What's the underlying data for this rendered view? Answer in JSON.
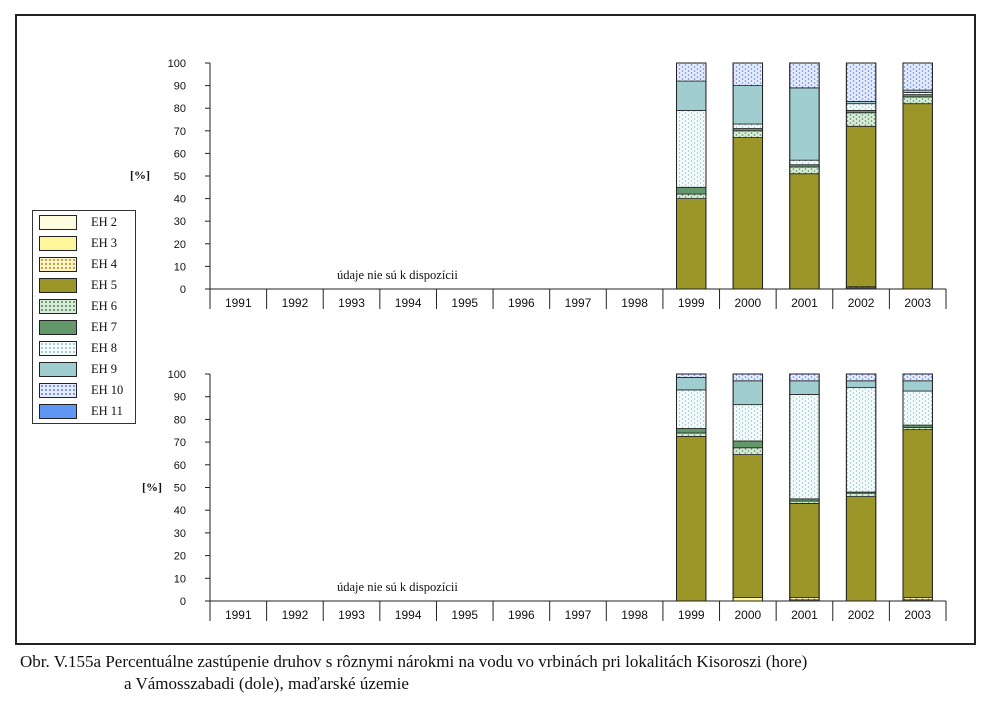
{
  "caption": {
    "line1": "Obr. V.155a Percentuálne zastúpenie druhov s rôznymi nárokmi na vodu vo vrbinách pri lokalitách Kisoroszi (hore)",
    "line2": "a Vámosszabadi (dole), maďarské územie"
  },
  "legend": [
    {
      "name": "EH 2",
      "color": "#fffde0",
      "pattern": "solid"
    },
    {
      "name": "EH 3",
      "color": "#fff59a",
      "pattern": "solid"
    },
    {
      "name": "EH 4",
      "color": "#fbf1c4",
      "pattern": "dots-olive"
    },
    {
      "name": "EH 5",
      "color": "#9c9528",
      "pattern": "solid"
    },
    {
      "name": "EH 6",
      "color": "#d8ead8",
      "pattern": "dots-green"
    },
    {
      "name": "EH 7",
      "color": "#63986b",
      "pattern": "solid"
    },
    {
      "name": "EH 8",
      "color": "#f5fbfb",
      "pattern": "dots-cyan"
    },
    {
      "name": "EH 9",
      "color": "#9fcdd0",
      "pattern": "solid"
    },
    {
      "name": "EH 10",
      "color": "#e6ecff",
      "pattern": "dots-blue"
    },
    {
      "name": "EH 11",
      "color": "#5f98f4",
      "pattern": "solid"
    }
  ],
  "chart_data": [
    {
      "type": "bar",
      "stacked": true,
      "ylabel": "[%]",
      "ylim": [
        0,
        100
      ],
      "yticks": [
        "0",
        "10",
        "20",
        "30",
        "40",
        "50",
        "60",
        "70",
        "80",
        "90",
        "100"
      ],
      "categories": [
        "1991",
        "1992",
        "1993",
        "1994",
        "1995",
        "1996",
        "1997",
        "1998",
        "1999",
        "2000",
        "2001",
        "2002",
        "2003"
      ],
      "annotation": "údaje nie sú k dispozícii",
      "series": [
        {
          "name": "EH 2",
          "values": [
            null,
            null,
            null,
            null,
            null,
            null,
            null,
            null,
            0,
            0,
            0,
            0.5,
            0
          ]
        },
        {
          "name": "EH 3",
          "values": [
            null,
            null,
            null,
            null,
            null,
            null,
            null,
            null,
            0,
            0,
            0,
            0,
            0
          ]
        },
        {
          "name": "EH 4",
          "values": [
            null,
            null,
            null,
            null,
            null,
            null,
            null,
            null,
            0,
            0,
            0,
            0.5,
            0
          ]
        },
        {
          "name": "EH 5",
          "values": [
            null,
            null,
            null,
            null,
            null,
            null,
            null,
            null,
            40,
            67,
            51,
            71,
            82
          ]
        },
        {
          "name": "EH 6",
          "values": [
            null,
            null,
            null,
            null,
            null,
            null,
            null,
            null,
            2,
            3,
            3,
            6,
            3
          ]
        },
        {
          "name": "EH 7",
          "values": [
            null,
            null,
            null,
            null,
            null,
            null,
            null,
            null,
            3,
            1,
            1,
            1,
            1
          ]
        },
        {
          "name": "EH 8",
          "values": [
            null,
            null,
            null,
            null,
            null,
            null,
            null,
            null,
            34,
            2,
            2,
            3,
            1
          ]
        },
        {
          "name": "EH 9",
          "values": [
            null,
            null,
            null,
            null,
            null,
            null,
            null,
            null,
            13,
            17,
            32,
            1,
            1
          ]
        },
        {
          "name": "EH 10",
          "values": [
            null,
            null,
            null,
            null,
            null,
            null,
            null,
            null,
            8,
            10,
            11,
            17,
            12
          ]
        },
        {
          "name": "EH 11",
          "values": [
            null,
            null,
            null,
            null,
            null,
            null,
            null,
            null,
            0,
            0,
            0,
            0,
            0
          ]
        }
      ]
    },
    {
      "type": "bar",
      "stacked": true,
      "ylabel": "[%]",
      "ylim": [
        0,
        100
      ],
      "yticks": [
        "0",
        "10",
        "20",
        "30",
        "40",
        "50",
        "60",
        "70",
        "80",
        "90",
        "100"
      ],
      "categories": [
        "1991",
        "1992",
        "1993",
        "1994",
        "1995",
        "1996",
        "1997",
        "1998",
        "1999",
        "2000",
        "2001",
        "2002",
        "2003"
      ],
      "annotation": "údaje nie sú k dispozícii",
      "series": [
        {
          "name": "EH 2",
          "values": [
            null,
            null,
            null,
            null,
            null,
            null,
            null,
            null,
            0,
            0,
            0,
            0,
            0
          ]
        },
        {
          "name": "EH 3",
          "values": [
            null,
            null,
            null,
            null,
            null,
            null,
            null,
            null,
            0,
            1.5,
            0.5,
            0,
            0.5
          ]
        },
        {
          "name": "EH 4",
          "values": [
            null,
            null,
            null,
            null,
            null,
            null,
            null,
            null,
            0,
            0,
            1,
            0,
            1
          ]
        },
        {
          "name": "EH 5",
          "values": [
            null,
            null,
            null,
            null,
            null,
            null,
            null,
            null,
            72.5,
            63,
            41.5,
            46,
            74
          ]
        },
        {
          "name": "EH 6",
          "values": [
            null,
            null,
            null,
            null,
            null,
            null,
            null,
            null,
            1.5,
            3,
            1,
            1.5,
            1
          ]
        },
        {
          "name": "EH 7",
          "values": [
            null,
            null,
            null,
            null,
            null,
            null,
            null,
            null,
            2,
            3,
            1,
            0.5,
            1
          ]
        },
        {
          "name": "EH 8",
          "values": [
            null,
            null,
            null,
            null,
            null,
            null,
            null,
            null,
            17,
            16,
            46,
            46,
            15
          ]
        },
        {
          "name": "EH 9",
          "values": [
            null,
            null,
            null,
            null,
            null,
            null,
            null,
            null,
            5.5,
            10.5,
            6,
            3,
            4.5
          ]
        },
        {
          "name": "EH 10",
          "values": [
            null,
            null,
            null,
            null,
            null,
            null,
            null,
            null,
            1.5,
            3,
            3,
            3,
            3
          ]
        },
        {
          "name": "EH 11",
          "values": [
            null,
            null,
            null,
            null,
            null,
            null,
            null,
            null,
            0,
            0,
            0,
            0,
            0
          ]
        }
      ]
    }
  ]
}
